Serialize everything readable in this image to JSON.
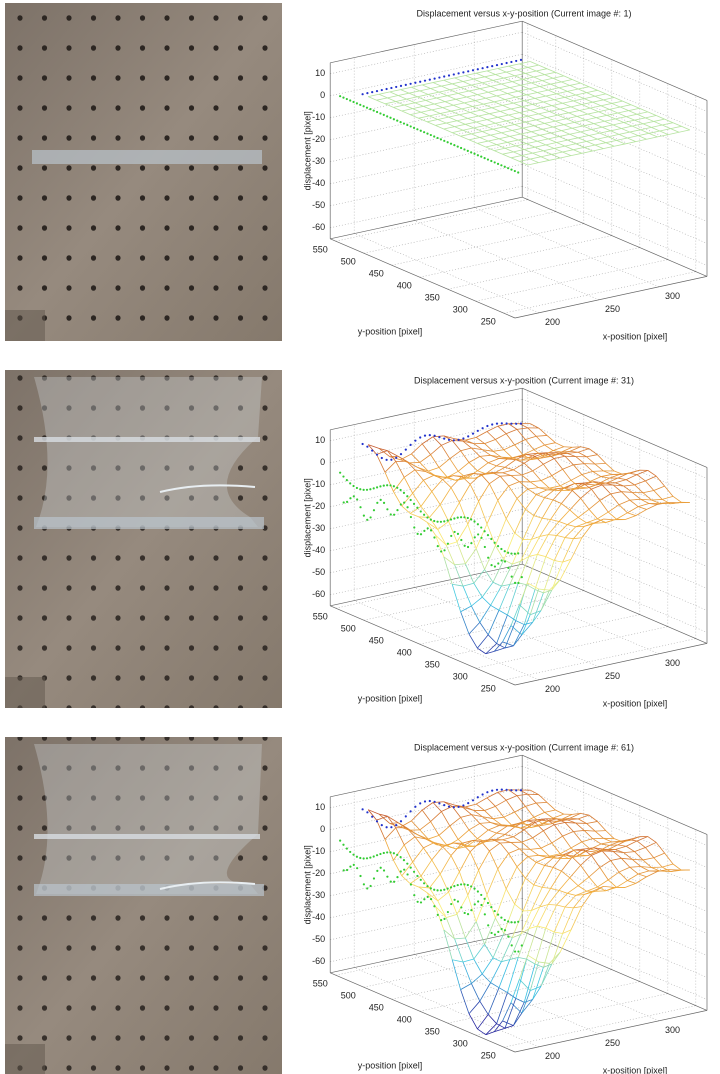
{
  "panels": [
    {
      "title": "Displacement versus x-y-position (Current image #: 1)",
      "z_label": "displacement [pixel]",
      "y_label": "y-position [pixel]",
      "x_label": "x-position [pixel]",
      "z_ticks": [
        10,
        0,
        -10,
        -20,
        -30,
        -40,
        -50,
        -60
      ],
      "y_ticks": [
        550,
        500,
        450,
        400,
        350,
        300,
        250
      ],
      "x_ticks": [
        200,
        250,
        300
      ]
    },
    {
      "title": "Displacement versus x-y-position (Current image #: 31)",
      "z_label": "displacement [pixel]",
      "y_label": "y-position [pixel]",
      "x_label": "x-position [pixel]",
      "z_ticks": [
        10,
        0,
        -10,
        -20,
        -30,
        -40,
        -50,
        -60
      ],
      "y_ticks": [
        550,
        500,
        450,
        400,
        350,
        300,
        250
      ],
      "x_ticks": [
        200,
        250,
        300
      ]
    },
    {
      "title": "Displacement versus x-y-position (Current image #: 61)",
      "z_label": "displacement [pixel]",
      "y_label": "y-position [pixel]",
      "x_label": "x-position [pixel]",
      "z_ticks": [
        10,
        0,
        -10,
        -20,
        -30,
        -40,
        -50,
        -60
      ],
      "y_ticks": [
        550,
        500,
        450,
        400,
        350,
        300,
        250
      ],
      "x_ticks": [
        200,
        250,
        300
      ]
    }
  ]
}
